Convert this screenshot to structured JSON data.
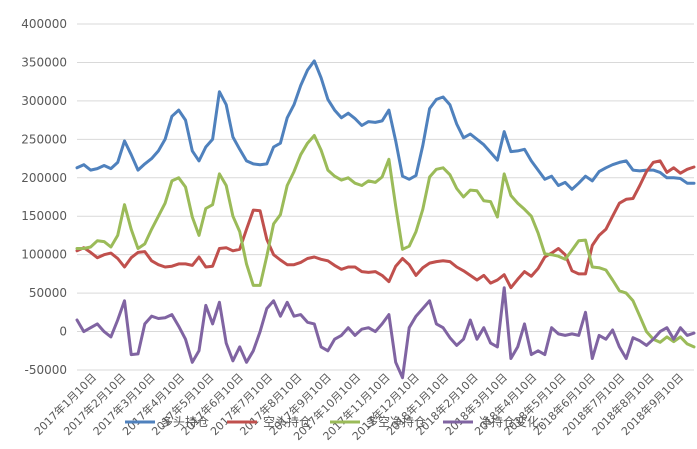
{
  "chart_data": {
    "type": "line",
    "title": "",
    "xlabel": "",
    "ylabel": "",
    "ylim": [
      -50000,
      400000
    ],
    "yticks": [
      -50000,
      0,
      50000,
      100000,
      150000,
      200000,
      250000,
      300000,
      350000,
      400000
    ],
    "ytick_labels": [
      "-50000",
      "0",
      "50000",
      "100000",
      "150000",
      "200000",
      "250000",
      "300000",
      "350000",
      "400000"
    ],
    "grid": "horizontal",
    "legend_position": "bottom",
    "x_tick_labels": [
      "2017年1月10日",
      "2017年2月10日",
      "2017年3月10日",
      "2017年4月10日",
      "2017年5月10日",
      "2017年6月10日",
      "2017年7月10日",
      "2017年8月10日",
      "2017年9月10日",
      "2017年10月10日",
      "2017年11月10日",
      "2017年12月10日",
      "2018年1月10日",
      "2018年2月10日",
      "2018年3月10日",
      "2018年4月10日",
      "2018年5月10日",
      "2018年6月10日",
      "2018年7月10日",
      "2018年8月10日",
      "2018年9月10日"
    ],
    "series": [
      {
        "name": "多头持仓",
        "color": "#4F81BD",
        "values": [
          213000,
          217000,
          210000,
          212000,
          216000,
          212000,
          220000,
          248000,
          230000,
          210000,
          218000,
          225000,
          235000,
          250000,
          280000,
          288000,
          275000,
          235000,
          222000,
          240000,
          250000,
          312000,
          295000,
          253000,
          237000,
          222000,
          218000,
          217000,
          218000,
          240000,
          245000,
          278000,
          295000,
          320000,
          340000,
          352000,
          330000,
          302000,
          288000,
          278000,
          284000,
          277000,
          268000,
          273000,
          272000,
          274000,
          288000,
          248000,
          202000,
          198000,
          203000,
          242000,
          290000,
          302000,
          305000,
          295000,
          270000,
          252000,
          257000,
          250000,
          243000,
          233000,
          223000,
          260000,
          234000,
          235000,
          237000,
          222000,
          210000,
          198000,
          202000,
          190000,
          194000,
          185000,
          193000,
          202000,
          196000,
          208000,
          213000,
          217000,
          220000,
          222000,
          210000,
          209000,
          210000,
          210000,
          207000,
          200000,
          200000,
          199000,
          193000,
          193000
        ]
      },
      {
        "name": "空头持仓",
        "color": "#C0504D",
        "values": [
          105000,
          109000,
          103000,
          96000,
          100000,
          102000,
          95000,
          84000,
          96000,
          103000,
          104000,
          92000,
          87000,
          84000,
          85000,
          88000,
          88000,
          86000,
          97000,
          84000,
          85000,
          108000,
          109000,
          105000,
          107000,
          133000,
          158000,
          157000,
          120000,
          100000,
          93000,
          87000,
          87000,
          90000,
          95000,
          97000,
          94000,
          92000,
          86000,
          81000,
          84000,
          84000,
          78000,
          77000,
          78000,
          73000,
          65000,
          85000,
          95000,
          87000,
          73000,
          83000,
          89000,
          91000,
          92000,
          91000,
          84000,
          79000,
          73000,
          67000,
          73000,
          63000,
          67000,
          74000,
          57000,
          68000,
          78000,
          72000,
          82000,
          97000,
          102000,
          108000,
          100000,
          79000,
          75000,
          75000,
          112000,
          125000,
          133000,
          150000,
          167000,
          172000,
          173000,
          190000,
          208000,
          220000,
          222000,
          207000,
          213000,
          206000,
          211000,
          214000
        ]
      },
      {
        "name": "多空净持仓",
        "color": "#9BBB59",
        "values": [
          108000,
          108000,
          110000,
          118000,
          117000,
          110000,
          125000,
          165000,
          133000,
          108000,
          114000,
          133000,
          150000,
          167000,
          196000,
          200000,
          188000,
          149000,
          125000,
          160000,
          165000,
          205000,
          190000,
          150000,
          130000,
          88000,
          60000,
          60000,
          98000,
          140000,
          152000,
          190000,
          208000,
          230000,
          245000,
          255000,
          236000,
          210000,
          202000,
          197000,
          200000,
          193000,
          190000,
          196000,
          194000,
          201000,
          224000,
          163000,
          107000,
          111000,
          130000,
          159000,
          201000,
          211000,
          213000,
          204000,
          186000,
          175000,
          184000,
          183000,
          170000,
          169000,
          149000,
          205000,
          177000,
          167000,
          159000,
          150000,
          128000,
          101000,
          100000,
          98000,
          94000,
          106000,
          118000,
          119000,
          84000,
          83000,
          80000,
          67000,
          53000,
          50000,
          40000,
          20000,
          0,
          -10000,
          -14000,
          -7000,
          -13000,
          -7000,
          -16000,
          -20000
        ]
      },
      {
        "name": "净持仓变化：",
        "color": "#8064A2",
        "values": [
          15000,
          0,
          5000,
          10000,
          0,
          -7000,
          15000,
          40000,
          -30000,
          -29000,
          10000,
          20000,
          17000,
          18000,
          22000,
          7000,
          -10000,
          -40000,
          -25000,
          34000,
          10000,
          38000,
          -15000,
          -38000,
          -20000,
          -40000,
          -25000,
          0,
          30000,
          40000,
          20000,
          38000,
          20000,
          22000,
          12000,
          10000,
          -20000,
          -25000,
          -10000,
          -5000,
          5000,
          -5000,
          3000,
          5000,
          0,
          10000,
          22000,
          -40000,
          -60000,
          5000,
          20000,
          30000,
          40000,
          10000,
          5000,
          -8000,
          -18000,
          -10000,
          15000,
          -10000,
          5000,
          -15000,
          -20000,
          57000,
          -35000,
          -20000,
          10000,
          -30000,
          -25000,
          -30000,
          5000,
          -3000,
          -5000,
          -3000,
          -5000,
          25000,
          -35000,
          -5000,
          -10000,
          2000,
          -20000,
          -35000,
          -8000,
          -12000,
          -18000,
          -10000,
          0,
          5000,
          -10000,
          5000,
          -5000,
          -2000
        ]
      }
    ]
  }
}
